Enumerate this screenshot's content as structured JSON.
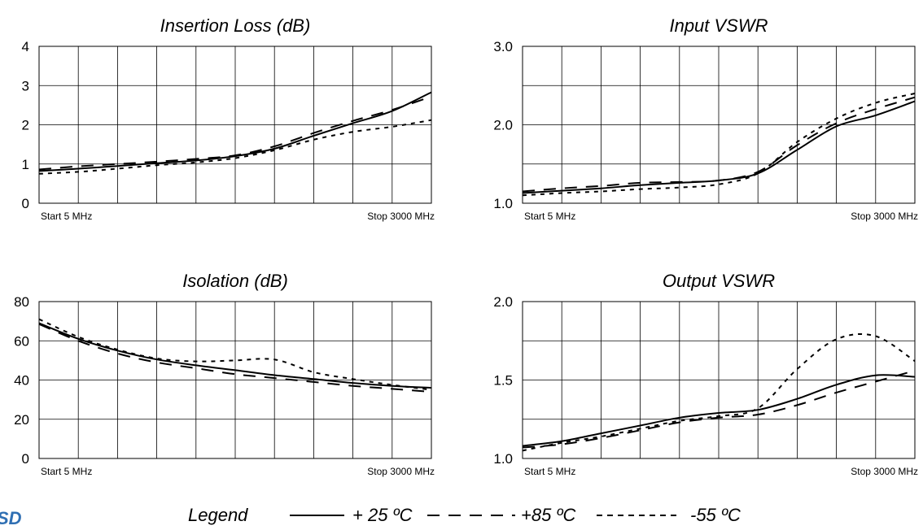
{
  "logo_text": "SD",
  "legend": {
    "label": "Legend",
    "items": [
      {
        "name": "+ 25 ºC",
        "style": "solid"
      },
      {
        "name": "+85 ºC",
        "style": "longdash"
      },
      {
        "name": "-55 ºC",
        "style": "shortdash"
      }
    ]
  },
  "chart_data": [
    {
      "type": "line",
      "title": "Insertion Loss (dB)",
      "xlabel": "",
      "ylabel": "",
      "x_start_label": "Start 5 MHz",
      "x_stop_label": "Stop 3000 MHz",
      "xlim": [
        5,
        3000
      ],
      "ylim": [
        0,
        4
      ],
      "yticks": [
        "0",
        "1",
        "2",
        "3",
        "4"
      ],
      "x_divisions": 10,
      "y_divisions": 4,
      "grid": true,
      "x": [
        5,
        304.5,
        604,
        903.5,
        1203,
        1502.5,
        1802,
        2101.5,
        2401,
        2700.5,
        3000
      ],
      "series": [
        {
          "name": "+ 25 ºC",
          "style": "solid",
          "values": [
            0.82,
            0.88,
            0.95,
            1.02,
            1.09,
            1.2,
            1.39,
            1.72,
            2.04,
            2.35,
            2.83
          ]
        },
        {
          "name": "+85 ºC",
          "style": "longdash",
          "values": [
            0.86,
            0.94,
            1.0,
            1.06,
            1.13,
            1.22,
            1.45,
            1.79,
            2.1,
            2.38,
            2.72
          ]
        },
        {
          "name": "-55 ºC",
          "style": "shortdash",
          "values": [
            0.75,
            0.8,
            0.88,
            0.97,
            1.04,
            1.15,
            1.35,
            1.62,
            1.82,
            1.95,
            2.12
          ]
        }
      ]
    },
    {
      "type": "line",
      "title": "Input VSWR",
      "xlabel": "",
      "ylabel": "",
      "x_start_label": "Start 5 MHz",
      "x_stop_label": "Stop 3000 MHz",
      "xlim": [
        5,
        3000
      ],
      "ylim": [
        1.0,
        3.0
      ],
      "yticks": [
        "1.0",
        "2.0",
        "3.0"
      ],
      "x_divisions": 10,
      "y_divisions": 4,
      "grid": true,
      "x": [
        5,
        304.5,
        604,
        903.5,
        1203,
        1502.5,
        1802,
        2101.5,
        2401,
        2700.5,
        3000
      ],
      "series": [
        {
          "name": "+ 25 ºC",
          "style": "solid",
          "values": [
            1.13,
            1.16,
            1.19,
            1.23,
            1.26,
            1.29,
            1.38,
            1.68,
            1.98,
            2.12,
            2.3
          ]
        },
        {
          "name": "+85 ºC",
          "style": "longdash",
          "values": [
            1.15,
            1.19,
            1.22,
            1.26,
            1.27,
            1.29,
            1.4,
            1.74,
            2.02,
            2.2,
            2.35
          ]
        },
        {
          "name": "-55 ºC",
          "style": "shortdash",
          "values": [
            1.1,
            1.13,
            1.15,
            1.18,
            1.2,
            1.24,
            1.38,
            1.78,
            2.08,
            2.28,
            2.4
          ]
        }
      ]
    },
    {
      "type": "line",
      "title": "Isolation (dB)",
      "xlabel": "",
      "ylabel": "",
      "x_start_label": "Start 5 MHz",
      "x_stop_label": "Stop 3000 MHz",
      "xlim": [
        5,
        3000
      ],
      "ylim": [
        0,
        80
      ],
      "yticks": [
        "0",
        "20",
        "40",
        "60",
        "80"
      ],
      "x_divisions": 10,
      "y_divisions": 4,
      "grid": true,
      "x": [
        5,
        304.5,
        604,
        903.5,
        1203,
        1502.5,
        1802,
        2101.5,
        2401,
        2700.5,
        3000
      ],
      "series": [
        {
          "name": "+ 25 ºC",
          "style": "solid",
          "values": [
            69,
            61,
            55,
            50.5,
            47.5,
            45,
            42.5,
            40.5,
            38.5,
            37,
            36
          ]
        },
        {
          "name": "+85 ºC",
          "style": "longdash",
          "values": [
            68.5,
            60,
            53.5,
            49,
            46,
            43,
            41,
            39,
            37,
            35.5,
            34
          ]
        },
        {
          "name": "-55 ºC",
          "style": "shortdash",
          "values": [
            71,
            62,
            55.5,
            51,
            49.5,
            50,
            50.5,
            44,
            40.5,
            37.5,
            35
          ]
        }
      ]
    },
    {
      "type": "line",
      "title": "Output VSWR",
      "xlabel": "",
      "ylabel": "",
      "x_start_label": "Start 5 MHz",
      "x_stop_label": "Stop 3000 MHz",
      "xlim": [
        5,
        3000
      ],
      "ylim": [
        1.0,
        2.0
      ],
      "yticks": [
        "1.0",
        "1.5",
        "2.0"
      ],
      "x_divisions": 10,
      "y_divisions": 4,
      "grid": true,
      "x": [
        5,
        304.5,
        604,
        903.5,
        1203,
        1502.5,
        1802,
        2101.5,
        2401,
        2700.5,
        3000
      ],
      "series": [
        {
          "name": "+ 25 ºC",
          "style": "solid",
          "values": [
            1.08,
            1.11,
            1.16,
            1.21,
            1.26,
            1.29,
            1.31,
            1.38,
            1.47,
            1.53,
            1.52
          ]
        },
        {
          "name": "+85 ºC",
          "style": "longdash",
          "values": [
            1.07,
            1.09,
            1.13,
            1.18,
            1.23,
            1.26,
            1.28,
            1.34,
            1.42,
            1.49,
            1.56
          ]
        },
        {
          "name": "-55 ºC",
          "style": "shortdash",
          "values": [
            1.05,
            1.1,
            1.14,
            1.19,
            1.24,
            1.27,
            1.32,
            1.57,
            1.76,
            1.78,
            1.62
          ]
        }
      ]
    }
  ]
}
